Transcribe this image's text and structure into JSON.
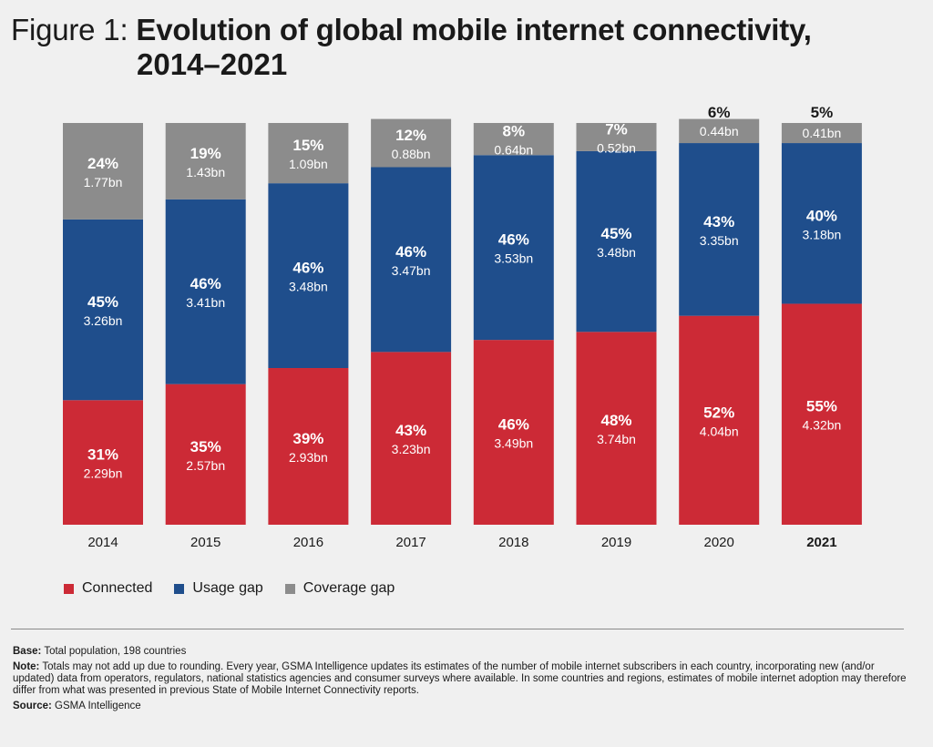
{
  "title": {
    "prefix": "Figure 1:",
    "line1": "Evolution of global mobile internet connectivity,",
    "line2": "2014–2021"
  },
  "colors": {
    "connected": "#cc2a36",
    "usage_gap": "#1f4e8c",
    "coverage_gap": "#8c8c8c"
  },
  "chart_data": {
    "type": "bar",
    "stacked": true,
    "categories": [
      "2014",
      "2015",
      "2016",
      "2017",
      "2018",
      "2019",
      "2020",
      "2021"
    ],
    "highlight_category": "2021",
    "series": [
      {
        "name": "Connected",
        "key": "connected",
        "percent": [
          31,
          35,
          39,
          43,
          46,
          48,
          52,
          55
        ],
        "pct_labels": [
          "31%",
          "35%",
          "39%",
          "43%",
          "46%",
          "48%",
          "52%",
          "55%"
        ],
        "values_bn": [
          2.29,
          2.57,
          2.93,
          3.23,
          3.49,
          3.74,
          4.04,
          4.32
        ],
        "bn_labels": [
          "2.29bn",
          "2.57bn",
          "2.93bn",
          "3.23bn",
          "3.49bn",
          "3.74bn",
          "4.04bn",
          "4.32bn"
        ]
      },
      {
        "name": "Usage gap",
        "key": "usage_gap",
        "percent": [
          45,
          46,
          46,
          46,
          46,
          45,
          43,
          40
        ],
        "pct_labels": [
          "45%",
          "46%",
          "46%",
          "46%",
          "46%",
          "45%",
          "43%",
          "40%"
        ],
        "values_bn": [
          3.26,
          3.41,
          3.48,
          3.47,
          3.53,
          3.48,
          3.35,
          3.18
        ],
        "bn_labels": [
          "3.26bn",
          "3.41bn",
          "3.48bn",
          "3.47bn",
          "3.53bn",
          "3.48bn",
          "3.35bn",
          "3.18bn"
        ]
      },
      {
        "name": "Coverage gap",
        "key": "coverage_gap",
        "percent": [
          24,
          19,
          15,
          12,
          8,
          7,
          6,
          5
        ],
        "pct_labels": [
          "24%",
          "19%",
          "15%",
          "12%",
          "8%",
          "7%",
          "6%",
          "5%"
        ],
        "values_bn": [
          1.77,
          1.43,
          1.09,
          0.88,
          0.64,
          0.52,
          0.44,
          0.41
        ],
        "bn_labels": [
          "1.77bn",
          "1.43bn",
          "1.09bn",
          "0.88bn",
          "0.64bn",
          "0.52bn",
          "0.44bn",
          "0.41bn"
        ]
      }
    ],
    "legend_position": "bottom-left"
  },
  "legend": [
    {
      "label": "Connected",
      "color_key": "connected"
    },
    {
      "label": "Usage gap",
      "color_key": "usage_gap"
    },
    {
      "label": "Coverage gap",
      "color_key": "coverage_gap"
    }
  ],
  "notes": {
    "base_label": "Base:",
    "base_text": "Total population, 198 countries",
    "note_label": "Note:",
    "note_text": "Totals may not add up due to rounding. Every year, GSMA Intelligence updates its estimates of the number of mobile internet subscribers in each country, incorporating new (and/or updated) data from operators, regulators, national statistics agencies and consumer surveys where available. In some countries and regions, estimates of mobile internet adoption may therefore differ from what was presented in previous State of Mobile Internet Connectivity reports.",
    "source_label": "Source:",
    "source_text": "GSMA Intelligence"
  }
}
